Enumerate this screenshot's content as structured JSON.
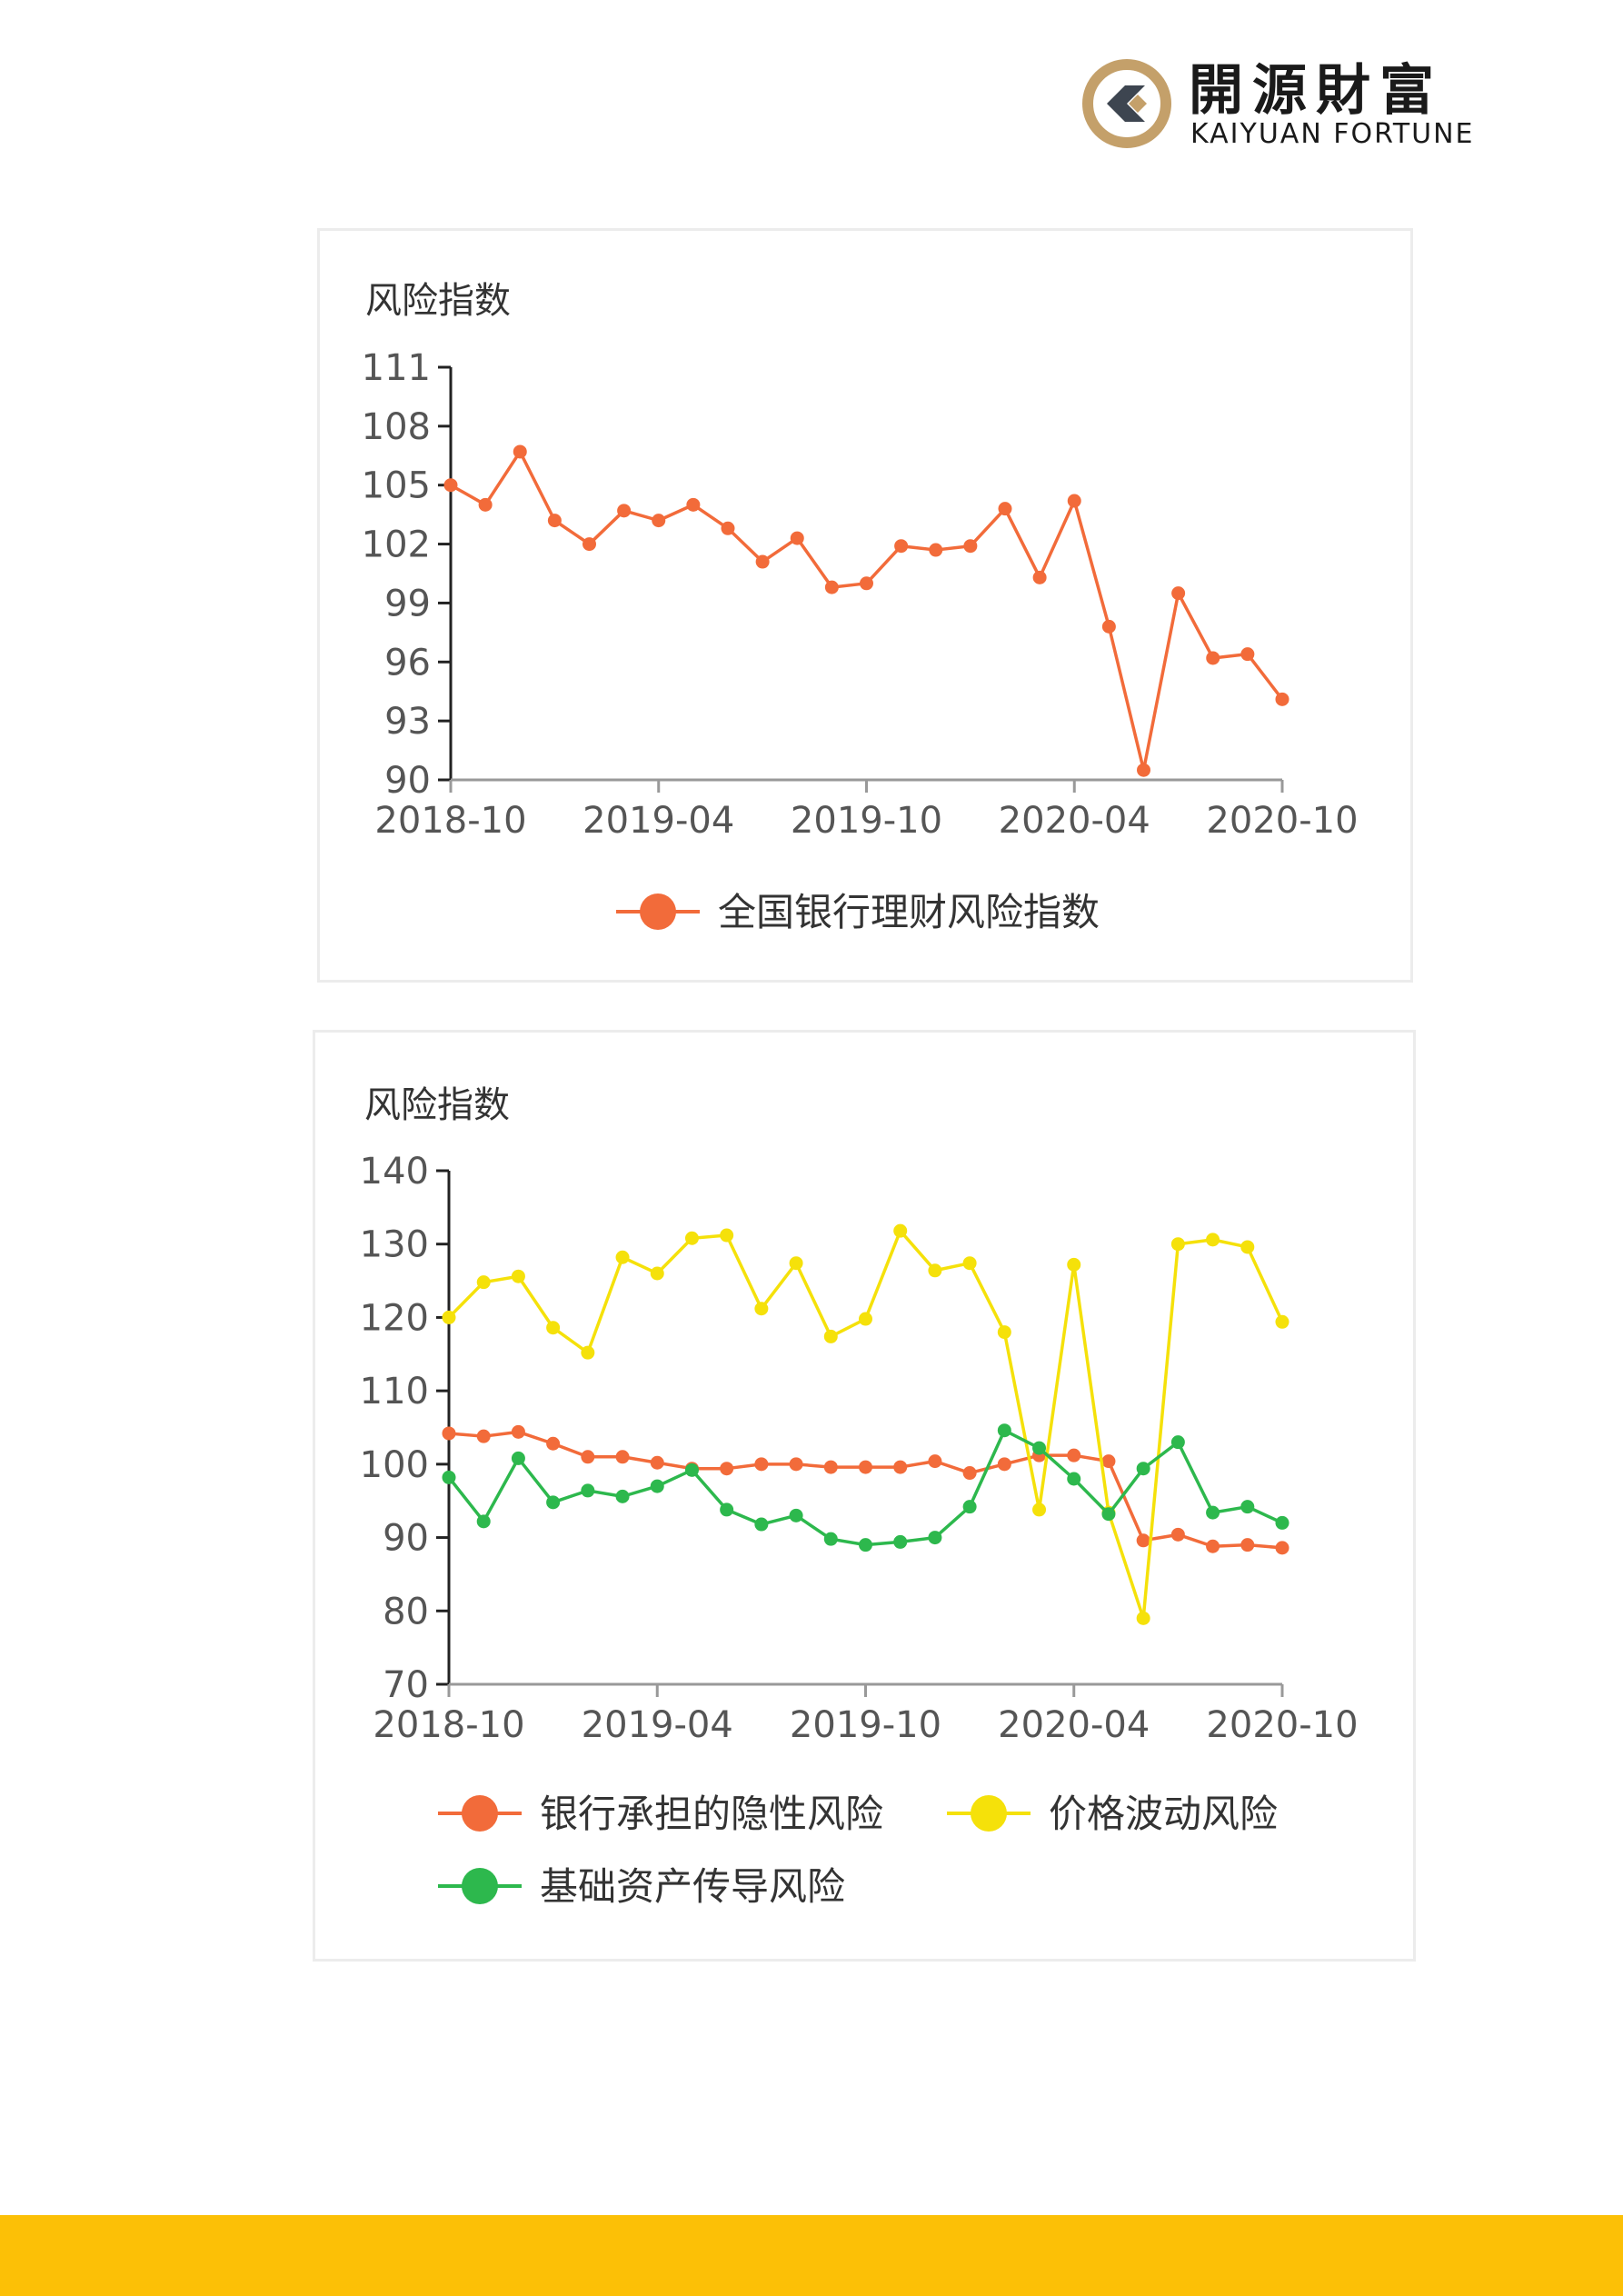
{
  "brand": {
    "name_cn": "開源財富",
    "name_en": "KAIYUAN FORTUNE",
    "colors": {
      "ring": "#c4a06a",
      "chevron": "#3d4550"
    }
  },
  "footer_color": "#fcc006",
  "chart_data": [
    {
      "type": "line",
      "ylabel": "风险指数",
      "ylim": [
        90,
        111
      ],
      "yticks": [
        90,
        93,
        96,
        99,
        102,
        105,
        108,
        111
      ],
      "x_tick_labels": [
        "2018-10",
        "2019-04",
        "2019-10",
        "2020-04",
        "2020-10"
      ],
      "x": [
        "2018-10",
        "2018-11",
        "2018-12",
        "2019-01",
        "2019-02",
        "2019-03",
        "2019-04",
        "2019-05",
        "2019-06",
        "2019-07",
        "2019-08",
        "2019-09",
        "2019-10",
        "2019-11",
        "2019-12",
        "2020-01",
        "2020-02",
        "2020-03",
        "2020-04",
        "2020-05",
        "2020-06",
        "2020-07",
        "2020-08",
        "2020-09",
        "2020-10"
      ],
      "grid": false,
      "legend_position": "bottom",
      "series": [
        {
          "name": "全国银行理财风险指数",
          "color": "#f26b3a",
          "values": [
            105.0,
            104.0,
            106.7,
            103.2,
            102.0,
            103.7,
            103.2,
            104.0,
            102.8,
            101.1,
            102.3,
            99.8,
            100.0,
            101.9,
            101.7,
            101.9,
            103.8,
            100.3,
            104.2,
            97.8,
            90.5,
            99.5,
            96.2,
            96.4,
            94.1
          ]
        }
      ]
    },
    {
      "type": "line",
      "ylabel": "风险指数",
      "ylim": [
        70,
        140
      ],
      "yticks": [
        70,
        80,
        90,
        100,
        110,
        120,
        130,
        140
      ],
      "x_tick_labels": [
        "2018-10",
        "2019-04",
        "2019-10",
        "2020-04",
        "2020-10"
      ],
      "x": [
        "2018-10",
        "2018-11",
        "2018-12",
        "2019-01",
        "2019-02",
        "2019-03",
        "2019-04",
        "2019-05",
        "2019-06",
        "2019-07",
        "2019-08",
        "2019-09",
        "2019-10",
        "2019-11",
        "2019-12",
        "2020-01",
        "2020-02",
        "2020-03",
        "2020-04",
        "2020-05",
        "2020-06",
        "2020-07",
        "2020-08",
        "2020-09",
        "2020-10"
      ],
      "grid": false,
      "legend_position": "bottom",
      "series": [
        {
          "name": "银行承担的隐性风险",
          "color": "#f26b3a",
          "values": [
            104.2,
            103.8,
            104.4,
            102.8,
            101.0,
            101.0,
            100.2,
            99.4,
            99.4,
            100.0,
            100.0,
            99.6,
            99.6,
            99.6,
            100.4,
            98.8,
            100.0,
            101.2,
            101.2,
            100.4,
            89.6,
            90.4,
            88.8,
            89.0,
            88.6
          ]
        },
        {
          "name": "价格波动风险",
          "color": "#f5e10a",
          "values": [
            120.0,
            124.8,
            125.6,
            118.6,
            115.2,
            128.2,
            126.0,
            130.8,
            131.2,
            121.2,
            127.4,
            117.4,
            119.8,
            131.8,
            126.4,
            127.4,
            118.0,
            93.8,
            127.2,
            93.4,
            79.0,
            130.0,
            130.6,
            129.6,
            119.4
          ]
        },
        {
          "name": "基础资产传导风险",
          "color": "#2db84d",
          "values": [
            98.2,
            92.2,
            100.8,
            94.8,
            96.4,
            95.6,
            97.0,
            99.2,
            93.8,
            91.8,
            93.0,
            89.8,
            89.0,
            89.4,
            90.0,
            94.2,
            104.6,
            102.2,
            98.0,
            93.2,
            99.4,
            103.0,
            93.4,
            94.2,
            92.0
          ]
        }
      ]
    }
  ]
}
